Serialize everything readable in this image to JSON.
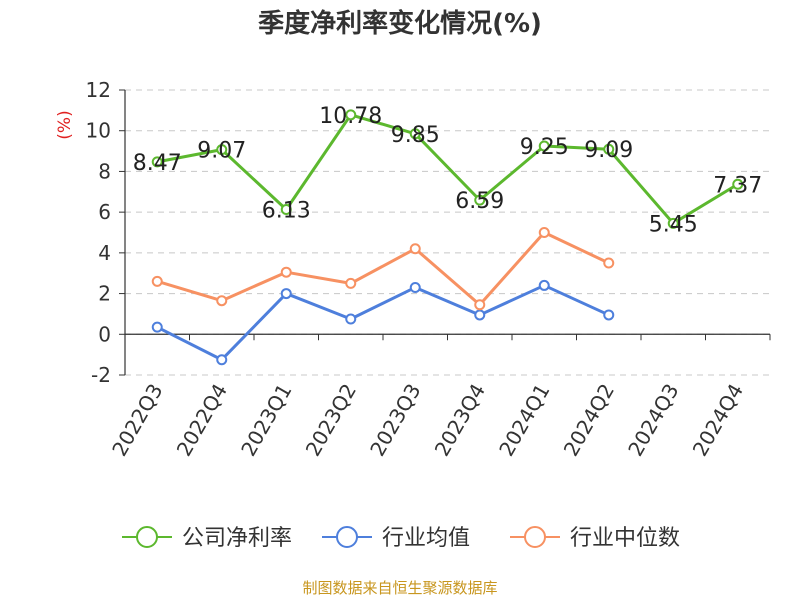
{
  "chart_data": {
    "type": "line",
    "title": "季度净利率变化情况(%)",
    "ylabel": "(%)",
    "xlabel": "",
    "categories": [
      "2022Q3",
      "2022Q4",
      "2023Q1",
      "2023Q2",
      "2023Q3",
      "2023Q4",
      "2024Q1",
      "2024Q2",
      "2024Q3",
      "2024Q4"
    ],
    "ylim": [
      -2,
      12
    ],
    "yticks": [
      -2,
      0,
      2,
      4,
      6,
      8,
      10,
      12
    ],
    "grid": true,
    "legend_position": "bottom",
    "series": [
      {
        "name": "公司净利率",
        "color": "#5cb82e",
        "show_labels": true,
        "values": [
          8.47,
          9.07,
          6.13,
          10.78,
          9.85,
          6.59,
          9.25,
          9.09,
          5.45,
          7.37
        ]
      },
      {
        "name": "行业均值",
        "color": "#4e7fdc",
        "show_labels": false,
        "values": [
          0.35,
          -1.25,
          2.0,
          0.75,
          2.3,
          0.95,
          2.4,
          0.95,
          null,
          null
        ]
      },
      {
        "name": "行业中位数",
        "color": "#f79162",
        "show_labels": false,
        "values": [
          2.6,
          1.65,
          3.05,
          2.5,
          4.2,
          1.45,
          5.0,
          3.5,
          null,
          null
        ]
      }
    ]
  },
  "source": "制图数据来自恒生聚源数据库"
}
